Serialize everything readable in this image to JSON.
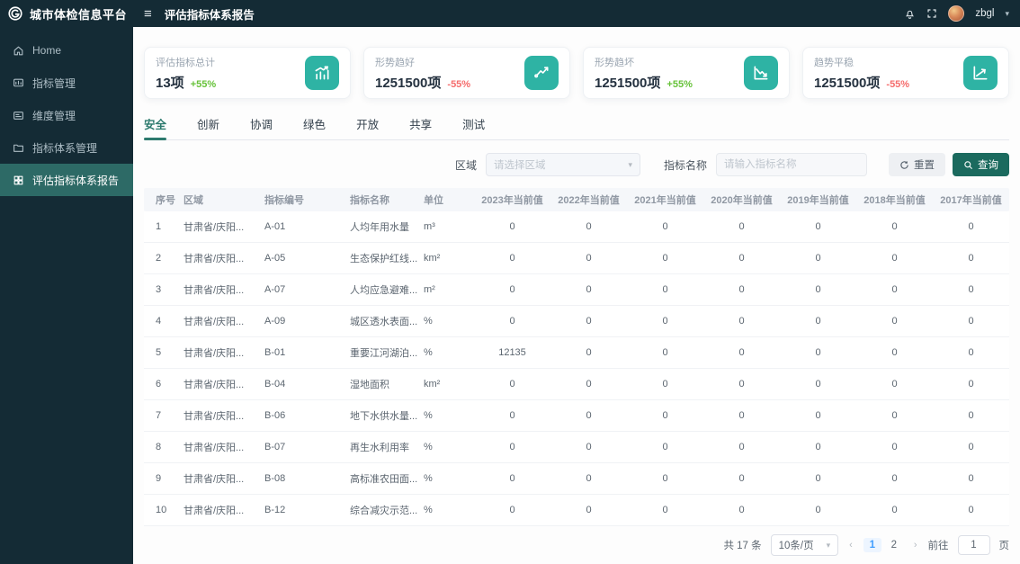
{
  "app": {
    "title": "城市体检信息平台",
    "page_title": "评估指标体系报告",
    "username": "zbgl"
  },
  "colors": {
    "sidebar_bg": "#142b35",
    "sidebar_active_bg": "#2d6a66",
    "accent_teal": "#2eb3a4",
    "primary_button": "#1b6a5e",
    "tab_active": "#2d7a6e",
    "delta_up_green": "#67c23a",
    "delta_down_red": "#f56c6c",
    "pagination_active": "#409eff"
  },
  "sidebar": {
    "items": [
      {
        "label": "Home",
        "icon": "home-icon",
        "active": false
      },
      {
        "label": "指标管理",
        "icon": "chart-box-icon",
        "active": false
      },
      {
        "label": "维度管理",
        "icon": "dimension-card-icon",
        "active": false
      },
      {
        "label": "指标体系管理",
        "icon": "folder-icon",
        "active": false
      },
      {
        "label": "评估指标体系报告",
        "icon": "grid-report-icon",
        "active": true
      }
    ]
  },
  "cards": [
    {
      "label": "评估指标总计",
      "value": "13项",
      "delta": "+55%",
      "delta_color": "#67c23a",
      "icon": "bar-chart-trend-icon"
    },
    {
      "label": "形势趋好",
      "value": "1251500项",
      "delta": "-55%",
      "delta_color": "#f56c6c",
      "icon": "line-chart-up-icon"
    },
    {
      "label": "形势趋坏",
      "value": "1251500项",
      "delta": "+55%",
      "delta_color": "#67c23a",
      "icon": "line-chart-down-icon"
    },
    {
      "label": "趋势平稳",
      "value": "1251500项",
      "delta": "-55%",
      "delta_color": "#f56c6c",
      "icon": "trend-stable-icon"
    }
  ],
  "tabs": {
    "active_index": 0,
    "items": [
      "安全",
      "创新",
      "协调",
      "绿色",
      "开放",
      "共享",
      "测试"
    ]
  },
  "filters": {
    "region_label": "区域",
    "region_placeholder": "请选择区域",
    "indicator_label": "指标名称",
    "indicator_placeholder": "请输入指标名称",
    "reset_label": "重置",
    "search_label": "查询"
  },
  "table": {
    "columns": [
      "序号",
      "区域",
      "指标编号",
      "指标名称",
      "单位",
      "2023年当前值",
      "2022年当前值",
      "2021年当前值",
      "2020年当前值",
      "2019年当前值",
      "2018年当前值",
      "2017年当前值"
    ],
    "rows": [
      [
        "1",
        "甘肃省/庆阳...",
        "A-01",
        "人均年用水量",
        "m³",
        "0",
        "0",
        "0",
        "0",
        "0",
        "0",
        "0"
      ],
      [
        "2",
        "甘肃省/庆阳...",
        "A-05",
        "生态保护红线...",
        "km²",
        "0",
        "0",
        "0",
        "0",
        "0",
        "0",
        "0"
      ],
      [
        "3",
        "甘肃省/庆阳...",
        "A-07",
        "人均应急避难...",
        "m²",
        "0",
        "0",
        "0",
        "0",
        "0",
        "0",
        "0"
      ],
      [
        "4",
        "甘肃省/庆阳...",
        "A-09",
        "城区透水表面...",
        "%",
        "0",
        "0",
        "0",
        "0",
        "0",
        "0",
        "0"
      ],
      [
        "5",
        "甘肃省/庆阳...",
        "B-01",
        "重要江河湖泊...",
        "%",
        "12135",
        "0",
        "0",
        "0",
        "0",
        "0",
        "0"
      ],
      [
        "6",
        "甘肃省/庆阳...",
        "B-04",
        "湿地面积",
        "km²",
        "0",
        "0",
        "0",
        "0",
        "0",
        "0",
        "0"
      ],
      [
        "7",
        "甘肃省/庆阳...",
        "B-06",
        "地下水供水量...",
        "%",
        "0",
        "0",
        "0",
        "0",
        "0",
        "0",
        "0"
      ],
      [
        "8",
        "甘肃省/庆阳...",
        "B-07",
        "再生水利用率",
        "%",
        "0",
        "0",
        "0",
        "0",
        "0",
        "0",
        "0"
      ],
      [
        "9",
        "甘肃省/庆阳...",
        "B-08",
        "高标准农田面...",
        "%",
        "0",
        "0",
        "0",
        "0",
        "0",
        "0",
        "0"
      ],
      [
        "10",
        "甘肃省/庆阳...",
        "B-12",
        "综合减灾示范...",
        "%",
        "0",
        "0",
        "0",
        "0",
        "0",
        "0",
        "0"
      ]
    ]
  },
  "pagination": {
    "total_text": "共 17 条",
    "page_size_text": "10条/页",
    "pages": [
      "1",
      "2"
    ],
    "active_page": "1",
    "goto_label": "前往",
    "goto_value": "1",
    "page_unit": "页"
  }
}
